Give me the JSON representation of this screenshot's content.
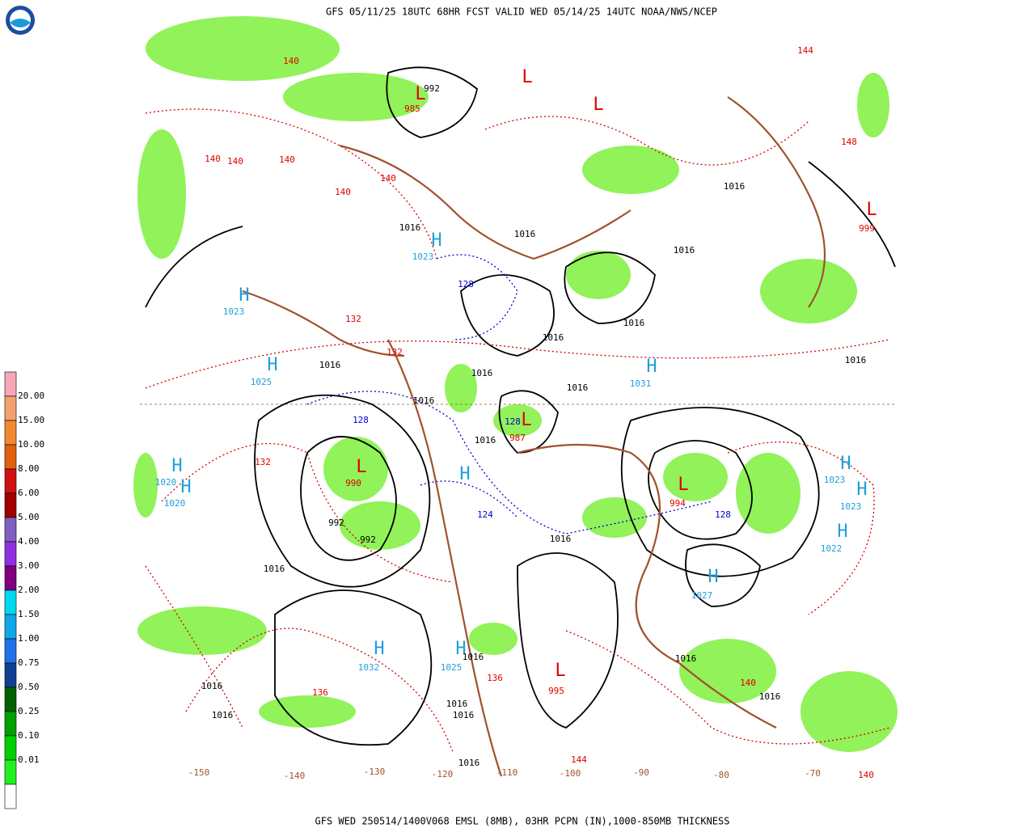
{
  "header": {
    "title": "GFS 05/11/25 18UTC 68HR FCST VALID WED 05/14/25 14UTC NOAA/NWS/NCEP"
  },
  "footer": {
    "text": "GFS WED 250514/1400V068 EMSL (8MB), 03HR PCPN (IN),1000-850MB THICKNESS"
  },
  "legend": {
    "labels": [
      "20.00",
      "15.00",
      "10.00",
      "8.00",
      "6.00",
      "5.00",
      "4.00",
      "3.00",
      "2.00",
      "1.50",
      "1.00",
      "0.75",
      "0.50",
      "0.25",
      "0.10",
      "0.01"
    ]
  },
  "map": {
    "high_labels": [
      "H",
      "1023",
      "H",
      "1023",
      "H",
      "1025",
      "H",
      "1031",
      "H",
      "1020",
      "H",
      "1020",
      "H",
      "H",
      "1023",
      "H",
      "1023",
      "H",
      "1022",
      "H",
      "1027",
      "H",
      "1032",
      "H",
      "1025"
    ],
    "low_labels": [
      "L",
      "990",
      "L",
      "987",
      "L",
      "994",
      "L",
      "995",
      "L",
      "985",
      "L",
      "999",
      "L",
      "L"
    ],
    "isobar_labels": [
      "1016",
      "1016",
      "1016",
      "1016",
      "1016",
      "1016",
      "1016",
      "1016",
      "1016",
      "1016",
      "1016",
      "1016",
      "1016",
      "1016",
      "1016",
      "1016",
      "1016",
      "1016",
      "1016",
      "1016",
      "1016",
      "1016",
      "992",
      "992",
      "992"
    ],
    "thickness_warm_labels": [
      "140",
      "140",
      "140",
      "140",
      "140",
      "140",
      "132",
      "136",
      "136",
      "144",
      "140",
      "140",
      "148",
      "144",
      "132",
      "132"
    ],
    "thickness_cold_labels": [
      "128",
      "128",
      "128",
      "128",
      "124"
    ],
    "longitude_labels": [
      "-150",
      "-140",
      "-130",
      "-120",
      "-110",
      "-100",
      "-90",
      "-80",
      "-70"
    ]
  }
}
